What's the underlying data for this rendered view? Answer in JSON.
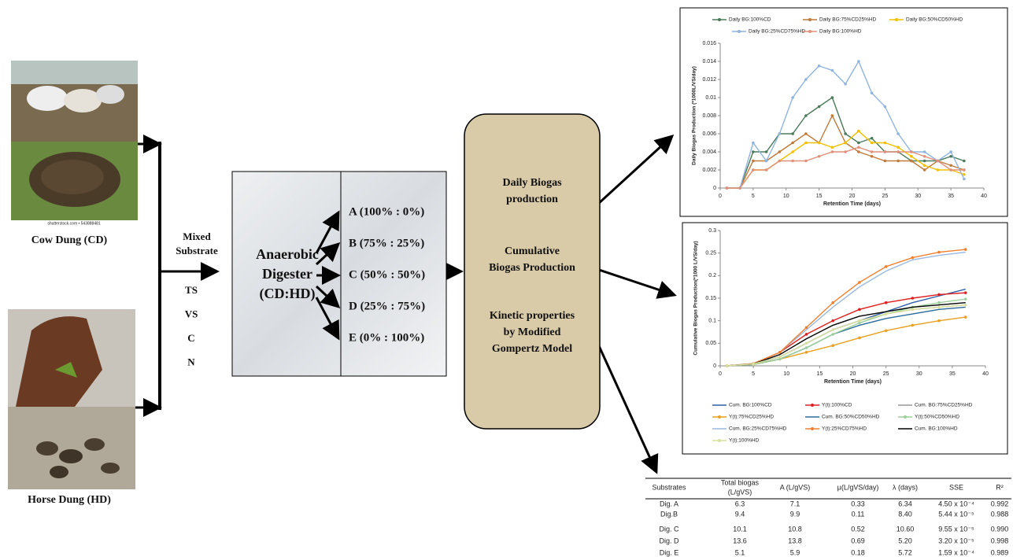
{
  "diagram": {
    "cow_label": "Cow Dung (CD)",
    "horse_label": "Horse Dung (HD)",
    "watermark": "shutterstock.com • 543888481",
    "mixed": [
      "Mixed",
      "Substrate"
    ],
    "params": [
      "TS",
      "VS",
      "C",
      "N"
    ],
    "digester": [
      "Anaerobic",
      "Digester",
      "(CD:HD)"
    ],
    "ratios": [
      "A (100% : 0%)",
      "B (75% : 25%)",
      "C (50% : 50%)",
      "D (25% : 75%)",
      "E (0% : 100%)"
    ],
    "outputs": [
      [
        "Daily Biogas",
        "production"
      ],
      [
        "Cumulative",
        "Biogas Production"
      ],
      [
        "Kinetic properties",
        "by Modified",
        "Gompertz Model"
      ]
    ]
  },
  "chart_data": [
    {
      "type": "line",
      "xlabel": "Retention Time (days)",
      "ylabel": "Daily Biogas Production (*1000L/VS/day)",
      "x": [
        1,
        3,
        5,
        7,
        9,
        11,
        13,
        15,
        17,
        19,
        21,
        23,
        25,
        27,
        29,
        31,
        33,
        35,
        37
      ],
      "xlim": [
        0,
        40
      ],
      "xticks": [
        0,
        5,
        10,
        15,
        20,
        25,
        30,
        35,
        40
      ],
      "ylim": [
        0,
        0.016
      ],
      "yticks": [
        0,
        0.002,
        0.004,
        0.006,
        0.008,
        0.01,
        0.012,
        0.014,
        0.016
      ],
      "series": [
        {
          "name": "Daily BG:100%CD",
          "color": "#4a7a5a",
          "marker": "dot",
          "values": [
            0,
            0,
            0.004,
            0.004,
            0.006,
            0.006,
            0.008,
            0.009,
            0.01,
            0.006,
            0.005,
            0.0055,
            0.004,
            0.004,
            0.003,
            0.003,
            0.003,
            0.0035,
            0.003
          ]
        },
        {
          "name": "Daily BG:75%CD25%HD",
          "color": "#c07a3a",
          "marker": "dot",
          "values": [
            0,
            0,
            0.003,
            0.003,
            0.004,
            0.005,
            0.006,
            0.005,
            0.008,
            0.005,
            0.004,
            0.0035,
            0.003,
            0.003,
            0.003,
            0.002,
            0.003,
            0.0025,
            0.002
          ]
        },
        {
          "name": "Daily BG:50%CD50%HD",
          "color": "#f2c000",
          "marker": "dot",
          "values": [
            0,
            0,
            0.002,
            0.002,
            0.003,
            0.004,
            0.005,
            0.005,
            0.0045,
            0.005,
            0.0063,
            0.005,
            0.005,
            0.0045,
            0.0035,
            0.0025,
            0.002,
            0.002,
            0.0015
          ]
        },
        {
          "name": "Daily BG:25%CD75%HD",
          "color": "#8fb4e0",
          "marker": "dot",
          "values": [
            0,
            0,
            0.005,
            0.003,
            0.006,
            0.01,
            0.012,
            0.0135,
            0.013,
            0.0115,
            0.014,
            0.0105,
            0.009,
            0.006,
            0.004,
            0.004,
            0.003,
            0.004,
            0.001
          ]
        },
        {
          "name": "Daily BG:100%HD",
          "color": "#e0907a",
          "marker": "dot",
          "values": [
            0,
            0,
            0.002,
            0.002,
            0.003,
            0.003,
            0.003,
            0.0035,
            0.004,
            0.004,
            0.0045,
            0.004,
            0.004,
            0.004,
            0.004,
            0.0035,
            0.003,
            0.002,
            0.002
          ]
        }
      ]
    },
    {
      "type": "line",
      "xlabel": "Retention Time (days)",
      "ylabel": "Cumulative Biogas Production(*1000 L/VS/day)",
      "x": [
        1,
        5,
        9,
        13,
        17,
        21,
        25,
        29,
        33,
        37
      ],
      "xlim": [
        0,
        40
      ],
      "xticks": [
        0,
        5,
        10,
        15,
        20,
        25,
        30,
        35,
        40
      ],
      "ylim": [
        0,
        0.3
      ],
      "yticks": [
        0,
        0.05,
        0.1,
        0.15,
        0.2,
        0.25,
        0.3
      ],
      "series": [
        {
          "name": "Cum. BG:100%CD",
          "color": "#2f5fa8",
          "values": [
            0,
            0.004,
            0.02,
            0.05,
            0.08,
            0.1,
            0.12,
            0.14,
            0.155,
            0.17
          ]
        },
        {
          "name": "Y(t):100%CD",
          "color": "#e02020",
          "marker": "dot",
          "values": [
            0,
            0.004,
            0.03,
            0.07,
            0.1,
            0.125,
            0.14,
            0.15,
            0.158,
            0.162
          ]
        },
        {
          "name": "Cum. BG:75%CD25%HD",
          "color": "#999999",
          "values": [
            0,
            0.004,
            0.02,
            0.05,
            0.08,
            0.1,
            0.115,
            0.125,
            0.13,
            0.135
          ]
        },
        {
          "name": "Y(t):75%CD25%HD",
          "color": "#e8a020",
          "marker": "dot",
          "values": [
            0,
            0.003,
            0.015,
            0.03,
            0.045,
            0.062,
            0.078,
            0.09,
            0.1,
            0.108
          ]
        },
        {
          "name": "Cum. BG:50%CD50%HD",
          "color": "#2a6a9a",
          "values": [
            0,
            0.003,
            0.015,
            0.04,
            0.07,
            0.09,
            0.105,
            0.115,
            0.125,
            0.13
          ]
        },
        {
          "name": "Y(t):50%CD50%HD",
          "color": "#9ccf9c",
          "marker": "dot",
          "values": [
            0,
            0.003,
            0.015,
            0.04,
            0.07,
            0.095,
            0.115,
            0.13,
            0.14,
            0.148
          ]
        },
        {
          "name": "Cum. BG:25%CD75%HD",
          "color": "#9ab8e0",
          "values": [
            0,
            0.005,
            0.03,
            0.08,
            0.13,
            0.175,
            0.21,
            0.235,
            0.245,
            0.252
          ]
        },
        {
          "name": "Y(t):25%CD75%HD",
          "color": "#f08030",
          "marker": "dot",
          "values": [
            0,
            0.005,
            0.03,
            0.085,
            0.14,
            0.185,
            0.22,
            0.24,
            0.252,
            0.258
          ]
        },
        {
          "name": "Cum. BG:100%HD",
          "color": "#000000",
          "values": [
            0,
            0.004,
            0.025,
            0.06,
            0.09,
            0.11,
            0.12,
            0.13,
            0.135,
            0.14
          ]
        },
        {
          "name": "Y(t):100%HD",
          "color": "#d8e0a0",
          "marker": "dot",
          "values": [
            0,
            0.004,
            0.02,
            0.05,
            0.08,
            0.1,
            0.115,
            0.125,
            0.13,
            0.135
          ]
        }
      ]
    }
  ],
  "table": {
    "header": [
      [
        "Substrates"
      ],
      [
        "Total biogas",
        "(L/gVS)"
      ],
      [
        "A (L/gVS)"
      ],
      [
        "μ(L/gVS/day)"
      ],
      [
        "λ (days)"
      ],
      [
        "SSE"
      ],
      [
        "R²"
      ]
    ],
    "rows": [
      [
        "Dig. A",
        "6.3",
        "7.1",
        "0.33",
        "6.34",
        "4.50 x 10⁻⁴",
        "0.992"
      ],
      [
        "Dig.B",
        "9.4",
        "9.9",
        "0.11",
        "8.40",
        "5.44 x 10⁻⁵",
        "0.988"
      ],
      [
        "Dig. C",
        "10.1",
        "10.8",
        "0.52",
        "10.60",
        "9.55 x 10⁻⁵",
        "0.990"
      ],
      [
        "Dig. D",
        "13.6",
        "13.8",
        "0.69",
        "5.20",
        "3.20 x 10⁻⁵",
        "0.998"
      ],
      [
        "Dig. E",
        "5.1",
        "5.9",
        "0.18",
        "5.72",
        "1.59 x 10⁻⁴",
        "0.989"
      ]
    ]
  }
}
